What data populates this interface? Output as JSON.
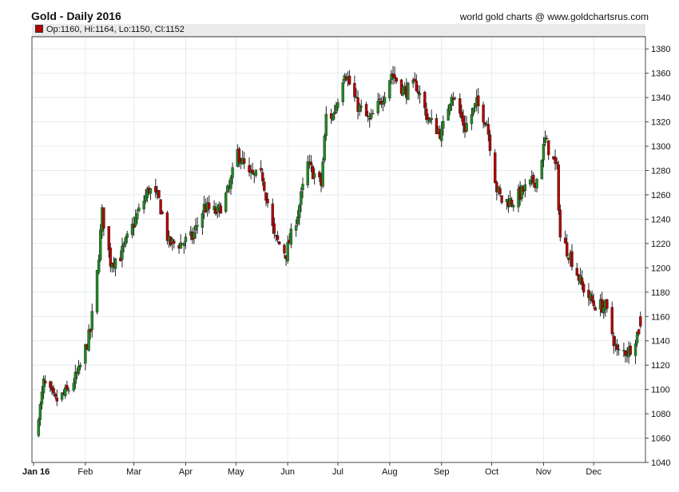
{
  "header": {
    "title": "Gold - Daily 2016",
    "credit": "world gold charts @ www.goldchartsrus.com"
  },
  "legend": {
    "ohlc": "Op:1160, Hi:1164, Lo:1150, Cl:1152"
  },
  "colors": {
    "up": "#1f8a1f",
    "down": "#b30000",
    "wick": "#222222",
    "grid": "#e4ecf3"
  },
  "chart_data": {
    "type": "candlestick",
    "title": "Gold - Daily 2016",
    "xlabel": "",
    "ylabel": "",
    "x_ticks": [
      "Jan 16",
      "Feb",
      "Mar",
      "Apr",
      "May",
      "Jun",
      "Jul",
      "Aug",
      "Sep",
      "Oct",
      "Nov",
      "Dec"
    ],
    "y_ticks": [
      1040,
      1060,
      1080,
      1100,
      1120,
      1140,
      1160,
      1180,
      1200,
      1220,
      1240,
      1260,
      1280,
      1300,
      1320,
      1340,
      1360,
      1380
    ],
    "ylim": [
      1040,
      1390
    ],
    "grid": true,
    "last_bar": {
      "open": 1160,
      "high": 1164,
      "low": 1150,
      "close": 1152
    },
    "daily_close_trajectory": {
      "x": [
        "2016-01-04",
        "2016-01-07",
        "2016-01-14",
        "2016-01-21",
        "2016-01-28",
        "2016-02-04",
        "2016-02-08",
        "2016-02-11",
        "2016-02-16",
        "2016-02-22",
        "2016-03-02",
        "2016-03-10",
        "2016-03-16",
        "2016-03-22",
        "2016-03-29",
        "2016-04-05",
        "2016-04-12",
        "2016-04-20",
        "2016-04-27",
        "2016-05-02",
        "2016-05-09",
        "2016-05-17",
        "2016-05-24",
        "2016-05-31",
        "2016-06-07",
        "2016-06-13",
        "2016-06-21",
        "2016-06-24",
        "2016-06-28",
        "2016-07-01",
        "2016-07-05",
        "2016-07-12",
        "2016-07-20",
        "2016-07-27",
        "2016-08-02",
        "2016-08-10",
        "2016-08-17",
        "2016-08-24",
        "2016-09-01",
        "2016-09-07",
        "2016-09-15",
        "2016-09-22",
        "2016-09-28",
        "2016-10-04",
        "2016-10-07",
        "2016-10-14",
        "2016-10-21",
        "2016-10-28",
        "2016-11-02",
        "2016-11-09",
        "2016-11-11",
        "2016-11-17",
        "2016-11-24",
        "2016-12-01",
        "2016-12-08",
        "2016-12-15",
        "2016-12-22",
        "2016-12-29"
      ],
      "close": [
        1075,
        1105,
        1090,
        1098,
        1114,
        1148,
        1195,
        1245,
        1205,
        1210,
        1240,
        1265,
        1255,
        1220,
        1220,
        1225,
        1250,
        1245,
        1265,
        1295,
        1275,
        1275,
        1225,
        1212,
        1245,
        1285,
        1268,
        1325,
        1325,
        1340,
        1363,
        1335,
        1320,
        1338,
        1360,
        1345,
        1350,
        1322,
        1310,
        1345,
        1315,
        1335,
        1320,
        1265,
        1255,
        1255,
        1265,
        1273,
        1305,
        1280,
        1225,
        1210,
        1185,
        1170,
        1168,
        1130,
        1132,
        1152
      ]
    }
  }
}
